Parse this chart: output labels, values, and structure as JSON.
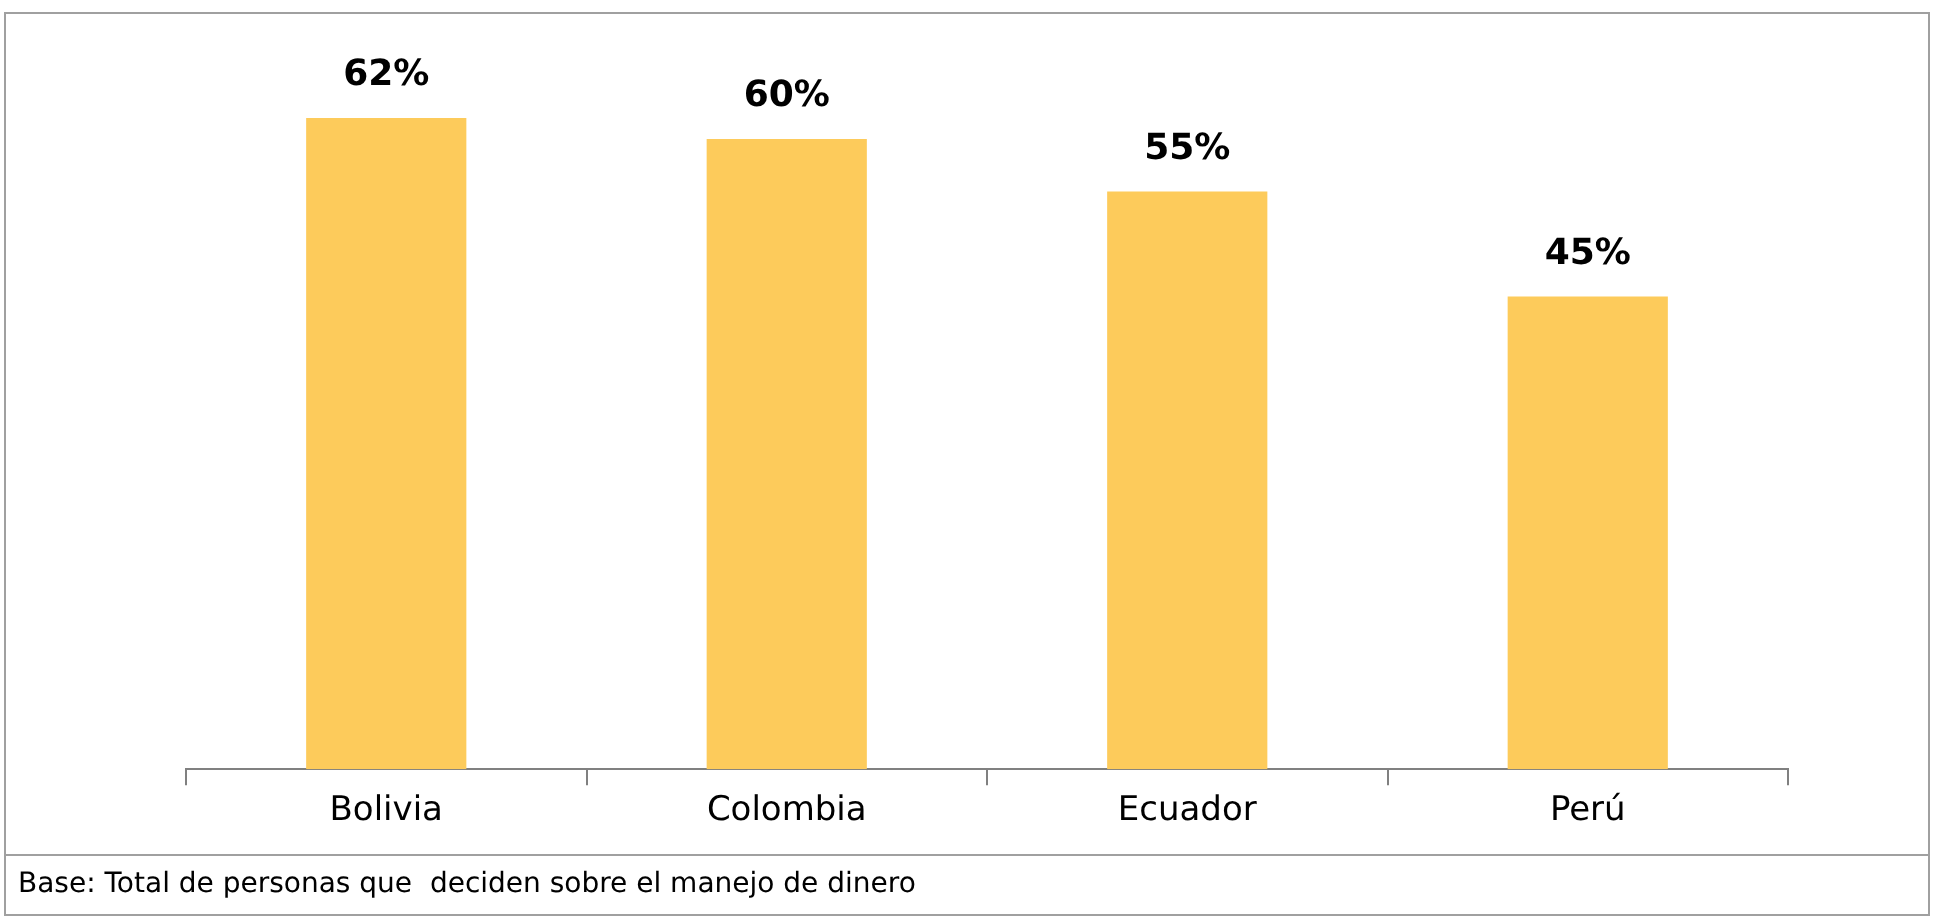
{
  "chart_data": {
    "type": "bar",
    "categories": [
      "Bolivia",
      "Colombia",
      "Ecuador",
      "Perú"
    ],
    "values": [
      62,
      60,
      55,
      45
    ],
    "value_labels": [
      "62%",
      "60%",
      "55%",
      "45%"
    ],
    "color": "#fdcb5b",
    "grid": false,
    "legend": false,
    "tick_labels": "x",
    "annotations": [
      "Base: Total de personas que  deciden sobre el manejo de dinero"
    ]
  }
}
